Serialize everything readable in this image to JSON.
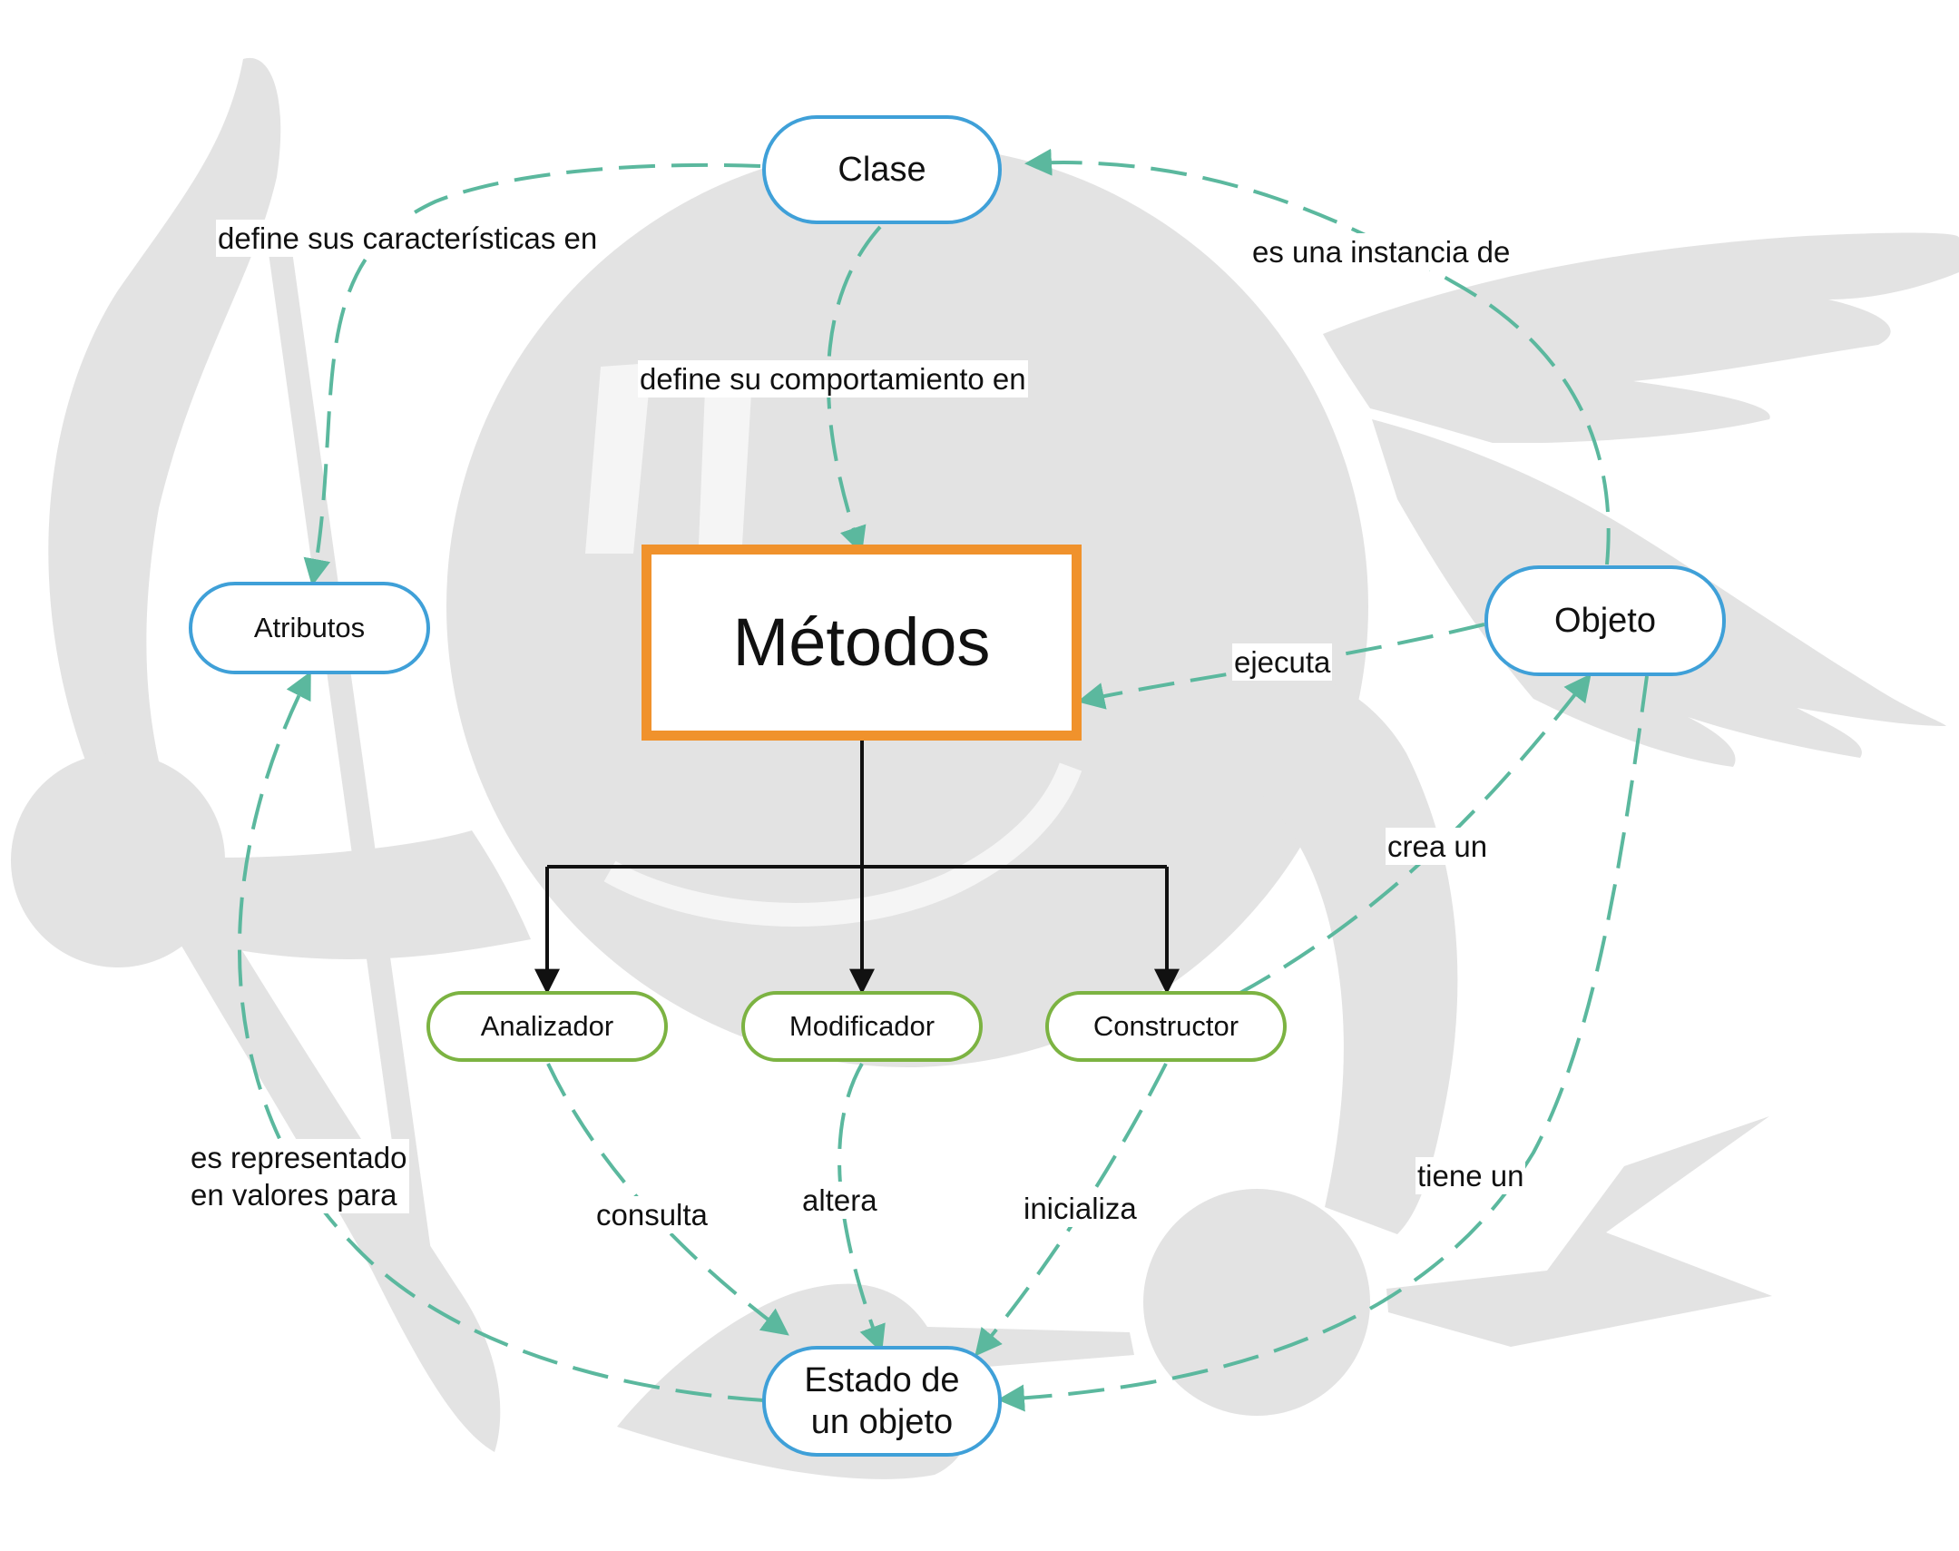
{
  "colors": {
    "background": "#ffffff",
    "watermark": "#e3e3e3",
    "concept_border": "#3fa0d8",
    "method_type_border": "#7cb342",
    "main_border": "#f0922c",
    "dashed_link": "#5bb89e",
    "solid_link": "#111111"
  },
  "watermark": {
    "icon": "greek-helmet-icon"
  },
  "nodes": {
    "clase": "Clase",
    "metodos": "Métodos",
    "atributos": "Atributos",
    "objeto": "Objeto",
    "analizador": "Analizador",
    "modificador": "Modificador",
    "constructor": "Constructor",
    "estado": "Estado de\nun objeto"
  },
  "links": {
    "clase_atributos": "define sus características en",
    "clase_metodos": "define su comportamiento en",
    "objeto_clase": "es una instancia de",
    "objeto_metodos": "ejecuta",
    "constructor_objeto": "crea un",
    "objeto_estado": "tiene un",
    "estado_atributos": "es representado\nen valores para",
    "analizador_estado": "consulta",
    "modificador_estado": "altera",
    "constructor_estado": "inicializa"
  }
}
